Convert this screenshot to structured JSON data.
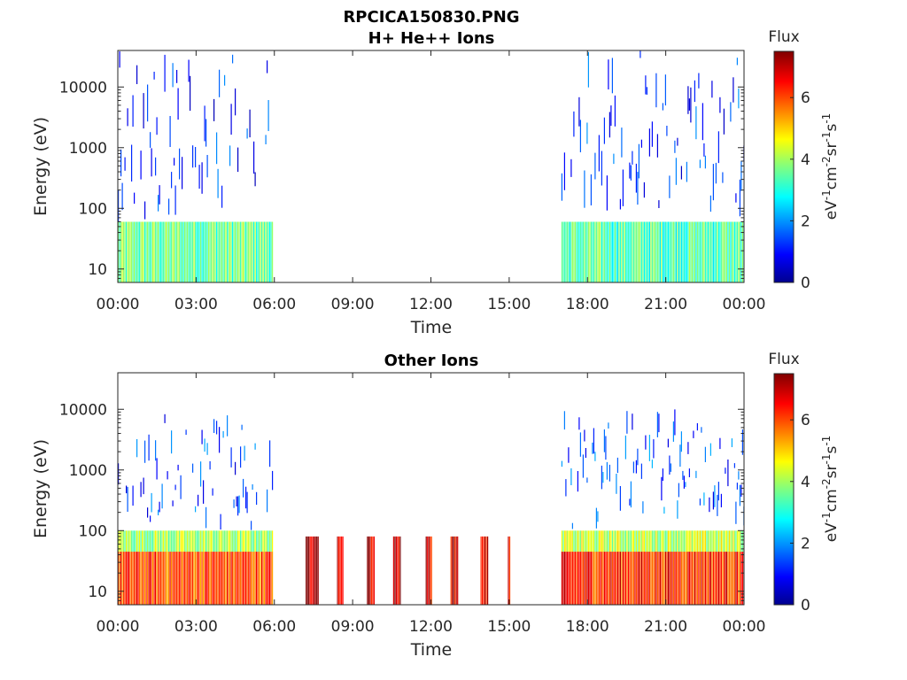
{
  "figure": {
    "title": "RPCICA150830.PNG"
  },
  "chart_data": [
    {
      "type": "heatmap",
      "title": "H+ He++ Ions",
      "xlabel": "Time",
      "ylabel": "Energy (eV)",
      "x_ticks": [
        "00:00",
        "03:00",
        "06:00",
        "09:00",
        "12:00",
        "15:00",
        "18:00",
        "21:00",
        "00:00"
      ],
      "xlim_hours": [
        0,
        24
      ],
      "y_scale": "log",
      "y_ticks": [
        "10",
        "100",
        "1000",
        "10000"
      ],
      "ylim": [
        6,
        40000
      ],
      "colorbar": {
        "title": "Flux",
        "label": "eV-1cm-2sr-1s-1",
        "ticks": [
          "0",
          "2",
          "4",
          "6"
        ],
        "range": [
          0,
          7.5
        ],
        "colormap": "jet"
      },
      "data_intervals_hours": [
        [
          0.0,
          5.95
        ],
        [
          17.0,
          24.0
        ]
      ],
      "bands": [
        {
          "t_start": 0.0,
          "t_end": 5.95,
          "e_min": 6,
          "e_max": 60,
          "flux": 3.6
        },
        {
          "t_start": 0.0,
          "t_end": 5.95,
          "e_min": 60,
          "e_max": 40000,
          "flux": 1.2
        },
        {
          "t_start": 17.0,
          "t_end": 24.0,
          "e_min": 6,
          "e_max": 60,
          "flux": 3.4
        },
        {
          "t_start": 17.0,
          "t_end": 24.0,
          "e_min": 60,
          "e_max": 40000,
          "flux": 1.3
        }
      ]
    },
    {
      "type": "heatmap",
      "title": "Other Ions",
      "xlabel": "Time",
      "ylabel": "Energy (eV)",
      "x_ticks": [
        "00:00",
        "03:00",
        "06:00",
        "09:00",
        "12:00",
        "15:00",
        "18:00",
        "21:00",
        "00:00"
      ],
      "xlim_hours": [
        0,
        24
      ],
      "y_scale": "log",
      "y_ticks": [
        "10",
        "100",
        "1000",
        "10000"
      ],
      "ylim": [
        6,
        40000
      ],
      "colorbar": {
        "title": "Flux",
        "label": "eV-1cm-2sr-1s-1",
        "ticks": [
          "0",
          "2",
          "4",
          "6"
        ],
        "range": [
          0,
          7.5
        ],
        "colormap": "jet"
      },
      "data_intervals_hours": [
        [
          0.0,
          5.95
        ],
        [
          17.0,
          24.0
        ]
      ],
      "bands": [
        {
          "t_start": 0.0,
          "t_end": 5.95,
          "e_min": 6,
          "e_max": 45,
          "flux": 6.0
        },
        {
          "t_start": 0.0,
          "t_end": 5.95,
          "e_min": 45,
          "e_max": 100,
          "flux": 4.0
        },
        {
          "t_start": 0.0,
          "t_end": 5.95,
          "e_min": 100,
          "e_max": 10000,
          "flux": 1.4
        },
        {
          "t_start": 17.0,
          "t_end": 24.0,
          "e_min": 6,
          "e_max": 45,
          "flux": 6.3
        },
        {
          "t_start": 17.0,
          "t_end": 24.0,
          "e_min": 45,
          "e_max": 100,
          "flux": 4.2
        },
        {
          "t_start": 17.0,
          "t_end": 24.0,
          "e_min": 100,
          "e_max": 10000,
          "flux": 1.5
        }
      ],
      "bursts": [
        {
          "t_start": 7.2,
          "t_end": 7.7,
          "e_min": 6,
          "e_max": 80,
          "flux": 7.2
        },
        {
          "t_start": 8.4,
          "t_end": 8.65,
          "e_min": 6,
          "e_max": 80,
          "flux": 6.9
        },
        {
          "t_start": 9.55,
          "t_end": 9.85,
          "e_min": 6,
          "e_max": 80,
          "flux": 7.0
        },
        {
          "t_start": 10.55,
          "t_end": 10.85,
          "e_min": 6,
          "e_max": 80,
          "flux": 6.9
        },
        {
          "t_start": 11.8,
          "t_end": 12.05,
          "e_min": 6,
          "e_max": 80,
          "flux": 6.8
        },
        {
          "t_start": 12.75,
          "t_end": 13.05,
          "e_min": 6,
          "e_max": 80,
          "flux": 6.8
        },
        {
          "t_start": 13.9,
          "t_end": 14.2,
          "e_min": 6,
          "e_max": 80,
          "flux": 6.7
        },
        {
          "t_start": 14.95,
          "t_end": 15.05,
          "e_min": 6,
          "e_max": 80,
          "flux": 6.3
        }
      ]
    }
  ]
}
